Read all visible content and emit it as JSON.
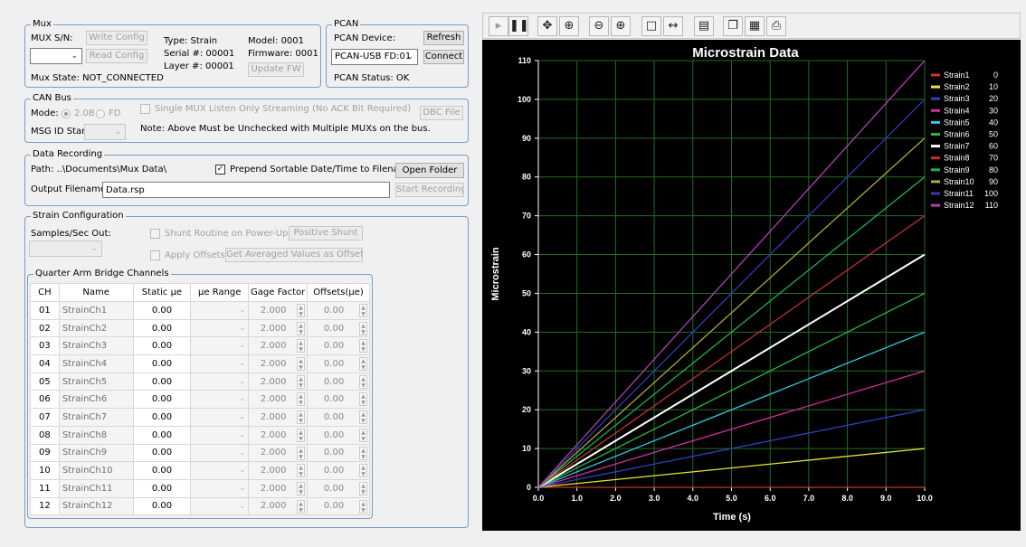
{
  "mux": {
    "title": "Mux",
    "sn_label": "MUX S/N:",
    "write_config": "Write Config",
    "read_config": "Read Config",
    "type": "Type: Strain",
    "serial": "Serial #: 00001",
    "layer": "Layer #: 00001",
    "model": "Model: 0001",
    "firmware": "Firmware: 0001",
    "update_fw": "Update FW",
    "state": "Mux State: NOT_CONNECTED"
  },
  "pcan": {
    "title": "PCAN",
    "device_label": "PCAN Device:",
    "refresh": "Refresh",
    "device_value": "PCAN-USB FD:01",
    "connect": "Connect",
    "status": "PCAN Status: OK"
  },
  "canbus": {
    "title": "CAN Bus",
    "mode_label": "Mode:",
    "mode_20b": "2.0B",
    "mode_fd": "FD",
    "single_mux": "Single MUX Listen Only Streaming (No ACK Bit Required)",
    "dbc_file": "DBC File",
    "msg_id_label": "MSG ID Start:",
    "note": "Note: Above Must be Unchecked with Multiple MUXs on the bus."
  },
  "recording": {
    "title": "Data Recording",
    "path": "Path: ..\\Documents\\Mux Data\\",
    "prepend": "Prepend Sortable Date/Time to Filename",
    "open_folder": "Open Folder",
    "output_label": "Output Filename:",
    "output_value": "Data.rsp",
    "start": "Start Recording"
  },
  "strain": {
    "title": "Strain Configuration",
    "samples_label": "Samples/Sec Out:",
    "shunt_label": "Shunt Routine on Power-Up",
    "positive_shunt": "Positive Shunt",
    "apply_offsets": "Apply Offsets",
    "avg_offsets": "Get Averaged Values as Offsets"
  },
  "channels": {
    "title": "Quarter Arm Bridge Channels",
    "headers": [
      "CH",
      "Name",
      "Static µe",
      "µe Range",
      "Gage Factor",
      "Offsets(µe)"
    ],
    "rows": [
      {
        "ch": "01",
        "name": "StrainCh1",
        "static": "0.00",
        "gage": "2.000",
        "offset": "0.00"
      },
      {
        "ch": "02",
        "name": "StrainCh2",
        "static": "0.00",
        "gage": "2.000",
        "offset": "0.00"
      },
      {
        "ch": "03",
        "name": "StrainCh3",
        "static": "0.00",
        "gage": "2.000",
        "offset": "0.00"
      },
      {
        "ch": "04",
        "name": "StrainCh4",
        "static": "0.00",
        "gage": "2.000",
        "offset": "0.00"
      },
      {
        "ch": "05",
        "name": "StrainCh5",
        "static": "0.00",
        "gage": "2.000",
        "offset": "0.00"
      },
      {
        "ch": "06",
        "name": "StrainCh6",
        "static": "0.00",
        "gage": "2.000",
        "offset": "0.00"
      },
      {
        "ch": "07",
        "name": "StrainCh7",
        "static": "0.00",
        "gage": "2.000",
        "offset": "0.00"
      },
      {
        "ch": "08",
        "name": "StrainCh8",
        "static": "0.00",
        "gage": "2.000",
        "offset": "0.00"
      },
      {
        "ch": "09",
        "name": "StrainCh9",
        "static": "0.00",
        "gage": "2.000",
        "offset": "0.00"
      },
      {
        "ch": "10",
        "name": "StrainCh10",
        "static": "0.00",
        "gage": "2.000",
        "offset": "0.00"
      },
      {
        "ch": "11",
        "name": "StrainCh11",
        "static": "0.00",
        "gage": "2.000",
        "offset": "0.00"
      },
      {
        "ch": "12",
        "name": "StrainCh12",
        "static": "0.00",
        "gage": "2.000",
        "offset": "0.00"
      }
    ]
  },
  "toolbar": {
    "icons": [
      "play-icon",
      "pause-icon",
      "pan-icon",
      "zoom-box-icon",
      "zoom-out-icon",
      "zoom-in-icon",
      "select-box-icon",
      "fit-width-icon",
      "properties-icon",
      "copy-icon",
      "save-icon",
      "print-icon"
    ]
  },
  "chart_data": {
    "type": "line",
    "title": "Microstrain Data",
    "xlabel": "Time (s)",
    "ylabel": "Microstrain",
    "xlim": [
      0,
      10
    ],
    "ylim": [
      0,
      110
    ],
    "xticks": [
      "0.0",
      "1.0",
      "2.0",
      "3.0",
      "4.0",
      "5.0",
      "6.0",
      "7.0",
      "8.0",
      "9.0",
      "10.0"
    ],
    "yticks": [
      "0",
      "10",
      "20",
      "30",
      "40",
      "50",
      "60",
      "70",
      "80",
      "90",
      "100",
      "110"
    ],
    "grid": true,
    "legend_position": "right",
    "x": [
      0,
      10
    ],
    "series": [
      {
        "name": "Strain1",
        "legend_value": "0",
        "color": "#d03030",
        "values": [
          0,
          0
        ]
      },
      {
        "name": "Strain2",
        "legend_value": "10",
        "color": "#e8e830",
        "values": [
          0,
          10
        ]
      },
      {
        "name": "Strain3",
        "legend_value": "20",
        "color": "#3040c0",
        "values": [
          0,
          20
        ]
      },
      {
        "name": "Strain4",
        "legend_value": "30",
        "color": "#d030a0",
        "values": [
          0,
          30
        ]
      },
      {
        "name": "Strain5",
        "legend_value": "40",
        "color": "#30c8e0",
        "values": [
          0,
          40
        ]
      },
      {
        "name": "Strain6",
        "legend_value": "50",
        "color": "#30b040",
        "values": [
          0,
          50
        ]
      },
      {
        "name": "Strain7",
        "legend_value": "60",
        "color": "#ffffff",
        "values": [
          0,
          60
        ]
      },
      {
        "name": "Strain8",
        "legend_value": "70",
        "color": "#c03030",
        "values": [
          0,
          70
        ]
      },
      {
        "name": "Strain9",
        "legend_value": "80",
        "color": "#20b050",
        "values": [
          0,
          80
        ]
      },
      {
        "name": "Strain10",
        "legend_value": "90",
        "color": "#b0a838",
        "values": [
          0,
          90
        ]
      },
      {
        "name": "Strain11",
        "legend_value": "100",
        "color": "#3838b0",
        "values": [
          0,
          100
        ]
      },
      {
        "name": "Strain12",
        "legend_value": "110",
        "color": "#b040b0",
        "values": [
          0,
          110
        ]
      }
    ]
  }
}
